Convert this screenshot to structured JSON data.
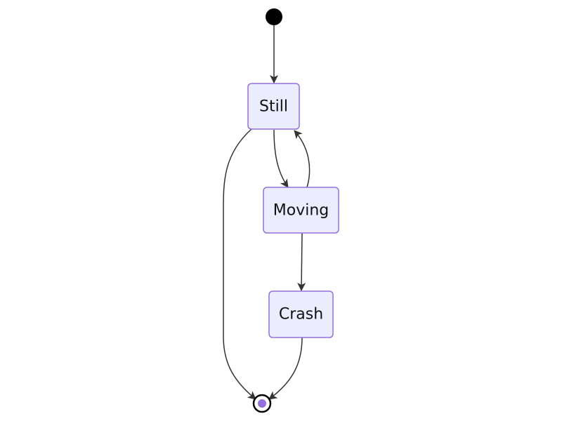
{
  "diagram": {
    "type": "state",
    "states": [
      {
        "id": "still",
        "label": "Still"
      },
      {
        "id": "moving",
        "label": "Moving"
      },
      {
        "id": "crash",
        "label": "Crash"
      }
    ],
    "transitions": [
      {
        "from": "start",
        "to": "still"
      },
      {
        "from": "still",
        "to": "moving"
      },
      {
        "from": "moving",
        "to": "still"
      },
      {
        "from": "still",
        "to": "end"
      },
      {
        "from": "moving",
        "to": "crash"
      },
      {
        "from": "crash",
        "to": "end"
      }
    ],
    "colors": {
      "state_fill": "#ECECFF",
      "state_stroke": "#9370DB",
      "edge": "#333333",
      "start": "#000000",
      "end_inner": "#9370DB"
    }
  }
}
